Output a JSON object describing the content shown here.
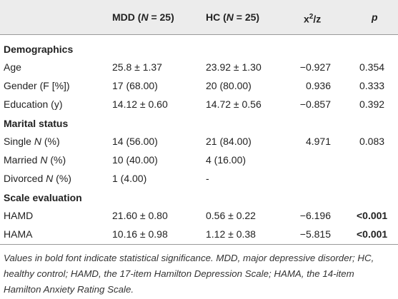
{
  "table": {
    "header": [
      {
        "text": "MDD (",
        "var": "N",
        "post": " = 25)"
      },
      {
        "text": "HC (",
        "var": "N",
        "post": " = 25)"
      },
      {
        "text": "x",
        "sup": "2",
        "post": "/z"
      },
      {
        "var": "p"
      }
    ],
    "sections": [
      {
        "title": "Demographics",
        "rows": [
          {
            "label": "Age",
            "cells": [
              "25.8 ± 1.37",
              "23.92 ± 1.30",
              "−0.927",
              "0.354"
            ]
          },
          {
            "label": "Gender (F [%])",
            "cells": [
              "17 (68.00)",
              "20 (80.00)",
              "0.936",
              "0.333"
            ]
          },
          {
            "label": "Education (y)",
            "cells": [
              "14.12 ± 0.60",
              "14.72 ± 0.56",
              "−0.857",
              "0.392"
            ]
          }
        ]
      },
      {
        "title": "Marital status",
        "rows": [
          {
            "label": "Single",
            "label_var": "N",
            "label_post": "(%)",
            "cells": [
              "14 (56.00)",
              "21 (84.00)",
              "4.971",
              "0.083"
            ]
          },
          {
            "label": "Married",
            "label_var": "N",
            "label_post": "(%)",
            "cells": [
              "10 (40.00)",
              "4 (16.00)",
              null,
              null
            ]
          },
          {
            "label": "Divorced",
            "label_var": "N",
            "label_post": "(%)",
            "cells": [
              "1 (4.00)",
              "-",
              null,
              null
            ]
          }
        ]
      },
      {
        "title": "Scale evaluation",
        "rows": [
          {
            "label": "HAMD",
            "cells": [
              "21.60 ± 0.80",
              "0.56 ± 0.22",
              "−6.196",
              "<0.001"
            ],
            "bold_p": true
          },
          {
            "label": "HAMA",
            "cells": [
              "10.16 ± 0.98",
              "1.12 ± 0.38",
              "−5.815",
              "<0.001"
            ],
            "bold_p": true
          }
        ]
      }
    ],
    "footnote": "Values in bold font indicate statistical significance. MDD, major depressive disorder; HC, healthy control; HAMD, the 17-item Hamilton Depression Scale; HAMA, the 14-item Hamilton Anxiety Rating Scale."
  }
}
